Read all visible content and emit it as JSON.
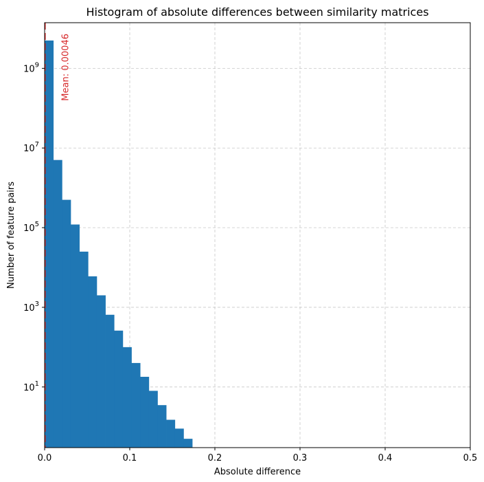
{
  "chart_data": {
    "type": "bar",
    "title": "Histogram of absolute differences between similarity matrices",
    "xlabel": "Absolute difference",
    "ylabel": "Number of feature pairs",
    "x_scale": "linear",
    "y_scale": "log",
    "xlim": [
      0,
      0.5
    ],
    "ylim": [
      0.3,
      14000000000.0
    ],
    "grid": true,
    "grid_style": "dashed",
    "x_ticks": [
      {
        "value": 0.0,
        "label": "0.0"
      },
      {
        "value": 0.1,
        "label": "0.1"
      },
      {
        "value": 0.2,
        "label": "0.2"
      },
      {
        "value": 0.3,
        "label": "0.3"
      },
      {
        "value": 0.4,
        "label": "0.4"
      },
      {
        "value": 0.5,
        "label": "0.5"
      }
    ],
    "y_ticks": [
      {
        "value": 10,
        "base": "10",
        "exp": "1"
      },
      {
        "value": 1000,
        "base": "10",
        "exp": "3"
      },
      {
        "value": 100000,
        "base": "10",
        "exp": "5"
      },
      {
        "value": 10000000,
        "base": "10",
        "exp": "7"
      },
      {
        "value": 1000000000,
        "base": "10",
        "exp": "9"
      }
    ],
    "bin_width": 0.0102,
    "bins": [
      {
        "x0": 0.0,
        "count": 5000000000
      },
      {
        "x0": 0.0102,
        "count": 5000000
      },
      {
        "x0": 0.0204,
        "count": 500000
      },
      {
        "x0": 0.0306,
        "count": 120000
      },
      {
        "x0": 0.0408,
        "count": 25000
      },
      {
        "x0": 0.051,
        "count": 6000
      },
      {
        "x0": 0.0612,
        "count": 2000
      },
      {
        "x0": 0.0714,
        "count": 650
      },
      {
        "x0": 0.0816,
        "count": 260
      },
      {
        "x0": 0.0918,
        "count": 100
      },
      {
        "x0": 0.102,
        "count": 40
      },
      {
        "x0": 0.1122,
        "count": 18
      },
      {
        "x0": 0.1224,
        "count": 8
      },
      {
        "x0": 0.1326,
        "count": 3.5
      },
      {
        "x0": 0.1428,
        "count": 1.5
      },
      {
        "x0": 0.153,
        "count": 0.9
      },
      {
        "x0": 0.1632,
        "count": 0.5
      }
    ],
    "bar_color": "#1f77b4",
    "mean_line": {
      "value": 0.00046,
      "label": "Mean: 0.00046",
      "color": "#d62728",
      "style": "dashed"
    }
  }
}
